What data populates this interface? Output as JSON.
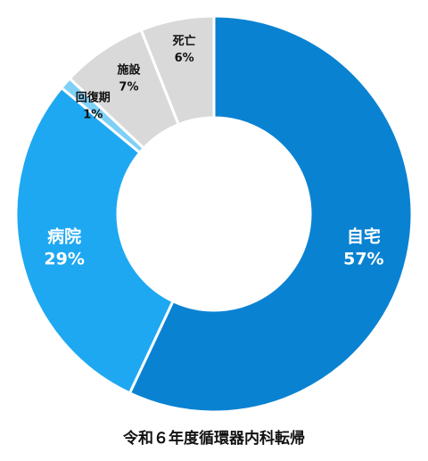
{
  "chart_data": {
    "type": "pie",
    "variant": "donut",
    "title": "令和６年度循環器内科転帰",
    "slices": [
      {
        "name": "自宅",
        "percent_label": "57%",
        "value": 57,
        "color": "#0a82d2",
        "label_color": "#ffffff"
      },
      {
        "name": "病院",
        "percent_label": "29%",
        "value": 29,
        "color": "#1ea8f2",
        "label_color": "#ffffff"
      },
      {
        "name": "回復期",
        "percent_label": "1%",
        "value": 1,
        "color": "#7fd0f7",
        "label_color": "#111111"
      },
      {
        "name": "施設",
        "percent_label": "7%",
        "value": 7,
        "color": "#d9d9d9",
        "label_color": "#111111"
      },
      {
        "name": "死亡",
        "percent_label": "6%",
        "value": 6,
        "color": "#d9d9d9",
        "label_color": "#111111"
      }
    ],
    "legend": "none"
  }
}
